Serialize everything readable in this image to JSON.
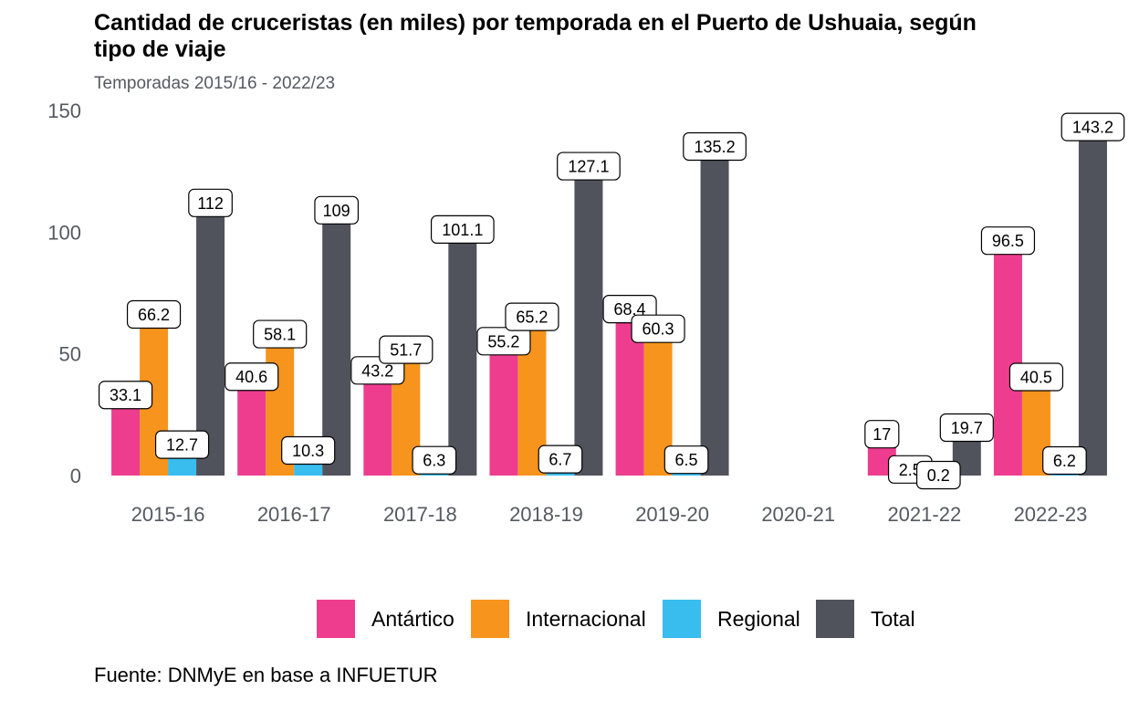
{
  "title": "Cantidad de cruceristas (en miles) por temporada en el Puerto de Ushuaia, según tipo de viaje",
  "subtitle": "Temporadas 2015/16 - 2022/23",
  "caption": "Fuente: DNMyE en base a INFUETUR",
  "chart_data": {
    "type": "bar",
    "categories": [
      "2015-16",
      "2016-17",
      "2017-18",
      "2018-19",
      "2019-20",
      "2020-21",
      "2021-22",
      "2022-23"
    ],
    "series": [
      {
        "name": "Antártico",
        "color": "#ee3d8f",
        "values": [
          33.1,
          40.6,
          43.2,
          55.2,
          68.4,
          null,
          17,
          96.5
        ]
      },
      {
        "name": "Internacional",
        "color": "#f7941d",
        "values": [
          66.2,
          58.1,
          51.7,
          65.2,
          60.3,
          null,
          2.5,
          40.5
        ]
      },
      {
        "name": "Regional",
        "color": "#38bdee",
        "values": [
          12.7,
          10.3,
          6.3,
          6.7,
          6.5,
          null,
          0.2,
          6.2
        ]
      },
      {
        "name": "Total",
        "color": "#50535c",
        "values": [
          112,
          109,
          101.1,
          127.1,
          135.2,
          null,
          19.7,
          143.2
        ]
      }
    ],
    "yticks": [
      0,
      50,
      100,
      150
    ],
    "ylim": [
      0,
      150
    ],
    "grid": false,
    "legend_position": "bottom"
  }
}
